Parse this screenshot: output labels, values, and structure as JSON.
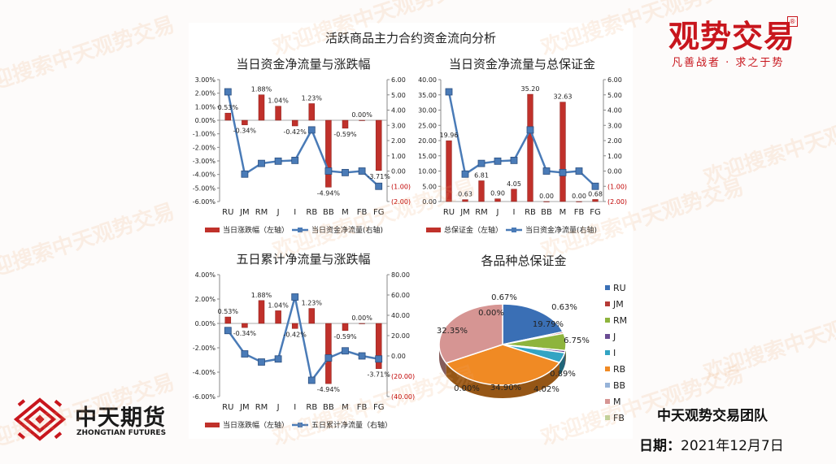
{
  "main_title": "活跃商品主力合约资金流向分析",
  "brand": {
    "name": "观势交易",
    "mark": "®",
    "slogan": "凡善战者 · 求之于势"
  },
  "company": {
    "name": "中天期货",
    "name_en": "ZHONGTIAN FUTURES"
  },
  "team": "中天观势交易团队",
  "date_label": "日期：",
  "date_value": "2021年12月7日",
  "watermark": "欢迎搜索中天观势交易",
  "colors": {
    "bar": "#c0312b",
    "line": "#4a7bb7",
    "accent_red": "#c8161d",
    "axis_negative": "#c00000"
  },
  "chart_data": [
    {
      "id": "daily-netflow-change",
      "type": "bar",
      "title": "当日资金净流量与涨跌幅",
      "categories": [
        "RU",
        "JM",
        "RM",
        "J",
        "I",
        "RB",
        "BB",
        "M",
        "FB",
        "FG"
      ],
      "series": [
        {
          "name": "当日涨跌幅（左轴）",
          "type": "bar",
          "axis": "left",
          "values": [
            0.53,
            -0.34,
            1.88,
            1.04,
            -0.42,
            1.23,
            -4.94,
            -0.59,
            0.0,
            -3.71
          ],
          "labels": [
            "0.53%",
            "-0.34%",
            "1.88%",
            "1.04%",
            "-0.42%",
            "1.23%",
            "-4.94%",
            "-0.59%",
            "0.00%",
            "-3.71%"
          ]
        },
        {
          "name": "当日资金净流量(右轴)",
          "type": "line",
          "axis": "right",
          "values": [
            5.2,
            -0.2,
            0.5,
            0.65,
            0.7,
            2.7,
            0.0,
            -0.1,
            0.0,
            -1.0
          ]
        }
      ],
      "left_axis": {
        "min": -6,
        "max": 3,
        "step": 1,
        "ticks": [
          "-6.00%",
          "-5.00%",
          "-4.00%",
          "-3.00%",
          "-2.00%",
          "-1.00%",
          "0.00%",
          "1.00%",
          "2.00%",
          "3.00%"
        ]
      },
      "right_axis": {
        "min": -2,
        "max": 6,
        "step": 1,
        "ticks": [
          "(2.00)",
          "(1.00)",
          "0.00",
          "1.00",
          "2.00",
          "3.00",
          "4.00",
          "5.00",
          "6.00"
        ]
      },
      "legend_position": "bottom"
    },
    {
      "id": "daily-netflow-margin",
      "type": "bar",
      "title": "当日资金净流量与总保证金",
      "categories": [
        "RU",
        "JM",
        "RM",
        "J",
        "I",
        "RB",
        "BB",
        "M",
        "FB",
        "FG"
      ],
      "series": [
        {
          "name": "总保证金（左轴）",
          "type": "bar",
          "axis": "left",
          "values": [
            19.96,
            0.63,
            6.81,
            0.9,
            4.05,
            35.2,
            0.0,
            32.63,
            0.0,
            0.68
          ],
          "labels": [
            "19.96",
            "0.63",
            "6.81",
            "0.90",
            "4.05",
            "35.20",
            "0.00",
            "32.63",
            "0.00",
            "0.68"
          ]
        },
        {
          "name": "当日资金净流量(右轴)",
          "type": "line",
          "axis": "right",
          "values": [
            5.2,
            -0.2,
            0.5,
            0.65,
            0.7,
            2.7,
            0.0,
            -0.1,
            0.0,
            -1.0
          ]
        }
      ],
      "left_axis": {
        "min": 0,
        "max": 40,
        "step": 5,
        "ticks": [
          "0.00",
          "5.00",
          "10.00",
          "15.00",
          "20.00",
          "25.00",
          "30.00",
          "35.00",
          "40.00"
        ]
      },
      "right_axis": {
        "min": -2,
        "max": 6,
        "step": 1,
        "ticks": [
          "(2.00)",
          "(1.00)",
          "0.00",
          "1.00",
          "2.00",
          "3.00",
          "4.00",
          "5.00",
          "6.00"
        ]
      },
      "legend_position": "bottom"
    },
    {
      "id": "five-day-netflow-change",
      "type": "bar",
      "title": "五日累计净流量与涨跌幅",
      "categories": [
        "RU",
        "JM",
        "RM",
        "J",
        "I",
        "RB",
        "BB",
        "M",
        "FB",
        "FG"
      ],
      "series": [
        {
          "name": "当日涨跌幅（左轴）",
          "type": "bar",
          "axis": "left",
          "values": [
            0.53,
            -0.34,
            1.88,
            1.04,
            -0.42,
            1.23,
            -4.94,
            -0.59,
            0.0,
            -3.71
          ],
          "labels": [
            "0.53%",
            "-0.34%",
            "1.88%",
            "1.04%",
            "-0.42%",
            "1.23%",
            "-4.94%",
            "-0.59%",
            "0.00%",
            "-3.71%"
          ]
        },
        {
          "name": "五日累计净流量（右轴）",
          "type": "line",
          "axis": "right",
          "values": [
            25,
            2,
            -6,
            -3,
            58,
            -24,
            -2,
            5,
            0,
            -3
          ]
        }
      ],
      "left_axis": {
        "min": -6,
        "max": 4,
        "step": 2,
        "ticks": [
          "-6.00%",
          "-4.00%",
          "-2.00%",
          "0.00%",
          "2.00%",
          "4.00%"
        ]
      },
      "right_axis": {
        "min": -40,
        "max": 80,
        "step": 20,
        "ticks": [
          "(40.00)",
          "(20.00)",
          "0.00",
          "20.00",
          "40.00",
          "60.00",
          "80.00"
        ]
      },
      "legend_position": "bottom"
    },
    {
      "id": "margin-by-product",
      "type": "pie",
      "title": "各品种总保证金",
      "categories": [
        "RU",
        "JM",
        "RM",
        "J",
        "I",
        "RB",
        "BB",
        "M",
        "FB"
      ],
      "values": [
        19.79,
        0.63,
        6.75,
        0.89,
        4.02,
        34.9,
        0.0,
        32.35,
        0.0
      ],
      "labels": [
        "19.79%",
        "0.63%",
        "6.75%",
        "0.89%",
        "4.02%",
        "34.90%",
        "0.00%",
        "32.35%",
        "0.00%"
      ],
      "extra_label": "0.67%",
      "colors": [
        "#3a6fb5",
        "#b53a36",
        "#8eb43d",
        "#6a4c93",
        "#33a4c3",
        "#f08a24",
        "#96b3d8",
        "#d69593",
        "#bdd7a0"
      ],
      "legend_position": "right"
    }
  ]
}
